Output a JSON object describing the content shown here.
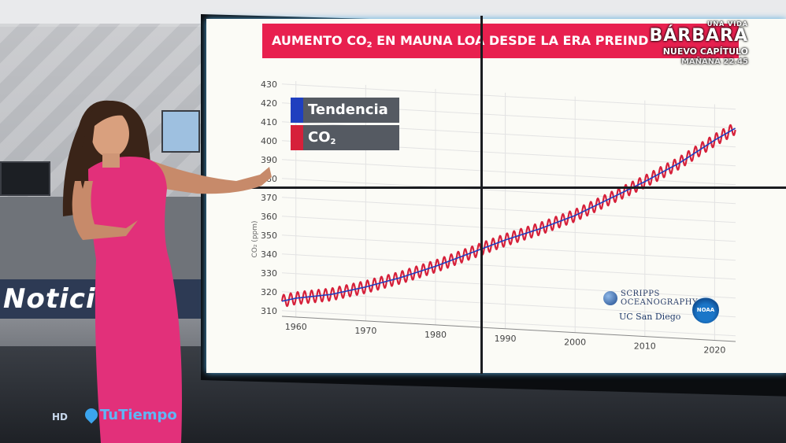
{
  "broadcast": {
    "title_line1": "AUMENTO CO",
    "title_sub": "2",
    "title_line2": " EN MAUNA LOA DESDE LA ERA PREIND",
    "promo": {
      "show_prefix": "UNA VIDA",
      "show_name": "BÁRBARA",
      "line3": "NUEVO CAPÍTULO",
      "line4": "MAÑANA 22.45"
    },
    "channel_quality": "HD",
    "channel_brand": "TuTiempo",
    "background_band": "Noticia"
  },
  "legend": {
    "trend_label": "Tendencia",
    "co2_label": "CO",
    "co2_sub": "2",
    "trend_color": "#1f3fbf",
    "co2_color": "#d6203a"
  },
  "logos": {
    "scripps_line1": "SCRIPPS",
    "scripps_line2": "OCEANOGRAPHY",
    "ucsd": "UC San Diego",
    "noaa": "NOAA"
  },
  "chart_data": {
    "type": "line",
    "ylabel": "CO₂ (ppm)",
    "xlabel": "",
    "x_ticks": [
      1960,
      1970,
      1980,
      1990,
      2000,
      2010,
      2020
    ],
    "y_ticks": [
      310,
      320,
      330,
      340,
      350,
      360,
      370,
      380,
      390,
      400,
      410,
      420,
      430
    ],
    "xlim": [
      1958,
      2023
    ],
    "ylim": [
      307,
      432
    ],
    "grid": true,
    "legend_position": "top-left",
    "series": [
      {
        "name": "Tendencia",
        "color": "#1f3fbf",
        "x": [
          1958,
          1960,
          1965,
          1970,
          1975,
          1980,
          1985,
          1990,
          1995,
          2000,
          2005,
          2010,
          2015,
          2020,
          2023
        ],
        "y": [
          315,
          317,
          320,
          325,
          331,
          338,
          346,
          354,
          361,
          369,
          379,
          389,
          400,
          413,
          420
        ]
      },
      {
        "name": "CO₂",
        "color": "#d6203a",
        "seasonal_amplitude_ppm": 3.2
      }
    ]
  }
}
